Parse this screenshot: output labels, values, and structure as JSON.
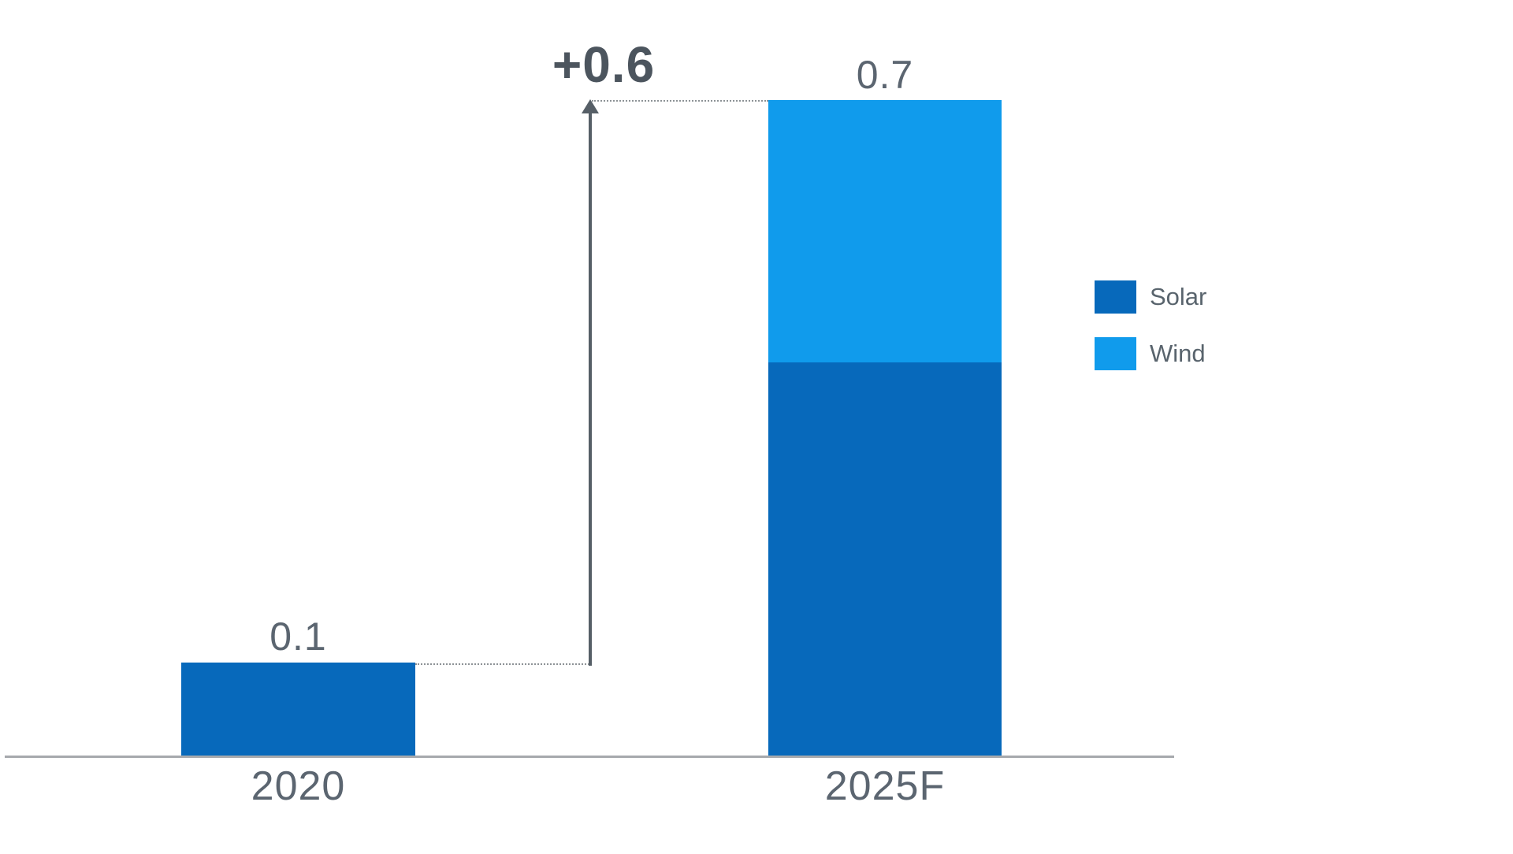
{
  "chart_data": {
    "type": "bar",
    "stacked": true,
    "title": "",
    "xlabel": "",
    "ylabel": "",
    "categories": [
      "2020",
      "2025F"
    ],
    "series": [
      {
        "name": "Solar",
        "color": "#0769bb",
        "values": [
          0.1,
          0.42
        ]
      },
      {
        "name": "Wind",
        "color": "#109bec",
        "values": [
          0,
          0.28
        ]
      }
    ],
    "totals": [
      0.1,
      0.7
    ],
    "value_labels": [
      "0.1",
      "0.7"
    ],
    "annotations": [
      {
        "text": "+0.6",
        "meaning": "growth from 2020 to 2025F"
      }
    ],
    "ylim": [
      0,
      0.75
    ],
    "grid": false,
    "y_axis_visible": false,
    "legend_position": "right"
  },
  "colors": {
    "solar": "#0769bb",
    "wind": "#109bec",
    "label_gray": "#5b6570",
    "annotation_gray": "#4c555e",
    "axis_gray": "#a6a9ad",
    "arrow_gray": "#565f67"
  }
}
